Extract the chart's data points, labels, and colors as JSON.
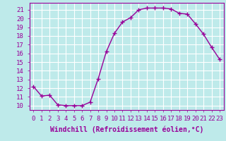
{
  "x": [
    0,
    1,
    2,
    3,
    4,
    5,
    6,
    7,
    8,
    9,
    10,
    11,
    12,
    13,
    14,
    15,
    16,
    17,
    18,
    19,
    20,
    21,
    22,
    23
  ],
  "y": [
    12.2,
    11.1,
    11.2,
    10.1,
    10.0,
    10.0,
    10.0,
    10.4,
    13.1,
    16.2,
    18.3,
    19.6,
    20.1,
    21.0,
    21.2,
    21.2,
    21.2,
    21.1,
    20.6,
    20.5,
    19.4,
    18.2,
    16.7,
    15.3
  ],
  "line_color": "#990099",
  "marker": "+",
  "marker_size": 4,
  "xlabel": "Windchill (Refroidissement éolien,°C)",
  "ylabel_ticks": [
    10,
    11,
    12,
    13,
    14,
    15,
    16,
    17,
    18,
    19,
    20,
    21
  ],
  "xtick_labels": [
    "0",
    "1",
    "2",
    "3",
    "4",
    "5",
    "6",
    "7",
    "8",
    "9",
    "10",
    "11",
    "12",
    "13",
    "14",
    "15",
    "16",
    "17",
    "18",
    "19",
    "20",
    "21",
    "22",
    "23"
  ],
  "xlim": [
    -0.5,
    23.5
  ],
  "ylim": [
    9.5,
    21.8
  ],
  "bg_color": "#beeaea",
  "grid_color": "#ffffff",
  "tick_fontsize": 6.5,
  "label_fontsize": 7,
  "line_width": 1.0,
  "spine_color": "#990099"
}
